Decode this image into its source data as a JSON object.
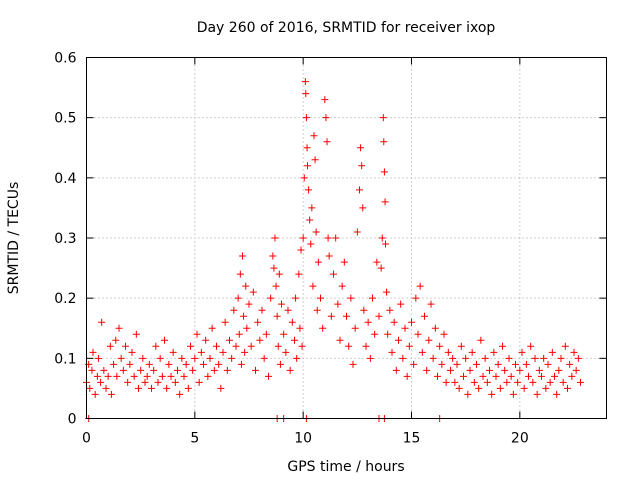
{
  "chart_data": {
    "type": "scatter",
    "title": "Day 260 of 2016, SRMTID for receiver ixop",
    "xlabel": "GPS time / hours",
    "ylabel": "SRMTID / TECUs",
    "xlim": [
      0,
      24
    ],
    "ylim": [
      0,
      0.6
    ],
    "xticks": [
      0,
      5,
      10,
      15,
      20
    ],
    "yticks": [
      0,
      0.1,
      0.2,
      0.3,
      0.4,
      0.5,
      0.6
    ],
    "ytick_labels": [
      "0",
      "0.1",
      "0.2",
      "0.3",
      "0.4",
      "0.5",
      "0.6"
    ],
    "grid": true,
    "marker": "+",
    "marker_color": "#ff0000",
    "series": [
      {
        "name": "SRMTID",
        "points": [
          [
            0.0,
            0.06
          ],
          [
            0.1,
            0.09
          ],
          [
            0.15,
            0.05
          ],
          [
            0.25,
            0.08
          ],
          [
            0.3,
            0.11
          ],
          [
            0.4,
            0.04
          ],
          [
            0.5,
            0.07
          ],
          [
            0.55,
            0.1
          ],
          [
            0.65,
            0.06
          ],
          [
            0.7,
            0.16
          ],
          [
            0.8,
            0.08
          ],
          [
            0.9,
            0.05
          ],
          [
            1.0,
            0.07
          ],
          [
            1.1,
            0.12
          ],
          [
            1.15,
            0.04
          ],
          [
            1.25,
            0.09
          ],
          [
            1.35,
            0.13
          ],
          [
            1.4,
            0.07
          ],
          [
            1.5,
            0.15
          ],
          [
            1.6,
            0.1
          ],
          [
            1.7,
            0.08
          ],
          [
            1.8,
            0.12
          ],
          [
            1.9,
            0.06
          ],
          [
            2.0,
            0.09
          ],
          [
            2.1,
            0.11
          ],
          [
            2.2,
            0.07
          ],
          [
            2.3,
            0.14
          ],
          [
            2.4,
            0.05
          ],
          [
            2.5,
            0.08
          ],
          [
            2.6,
            0.1
          ],
          [
            2.7,
            0.06
          ],
          [
            2.8,
            0.07
          ],
          [
            2.9,
            0.09
          ],
          [
            3.0,
            0.05
          ],
          [
            3.1,
            0.08
          ],
          [
            3.2,
            0.12
          ],
          [
            3.3,
            0.06
          ],
          [
            3.4,
            0.1
          ],
          [
            3.5,
            0.07
          ],
          [
            3.6,
            0.13
          ],
          [
            3.7,
            0.05
          ],
          [
            3.8,
            0.09
          ],
          [
            3.9,
            0.07
          ],
          [
            4.0,
            0.11
          ],
          [
            4.1,
            0.06
          ],
          [
            4.2,
            0.08
          ],
          [
            4.3,
            0.04
          ],
          [
            4.4,
            0.1
          ],
          [
            4.5,
            0.07
          ],
          [
            4.6,
            0.09
          ],
          [
            4.7,
            0.05
          ],
          [
            4.8,
            0.12
          ],
          [
            4.9,
            0.08
          ],
          [
            5.0,
            0.1
          ],
          [
            5.1,
            0.14
          ],
          [
            5.2,
            0.06
          ],
          [
            5.3,
            0.11
          ],
          [
            5.4,
            0.09
          ],
          [
            5.5,
            0.13
          ],
          [
            5.6,
            0.07
          ],
          [
            5.7,
            0.1
          ],
          [
            5.8,
            0.15
          ],
          [
            5.9,
            0.08
          ],
          [
            6.0,
            0.12
          ],
          [
            6.1,
            0.09
          ],
          [
            6.2,
            0.05
          ],
          [
            6.3,
            0.11
          ],
          [
            6.4,
            0.16
          ],
          [
            6.5,
            0.08
          ],
          [
            6.6,
            0.13
          ],
          [
            6.7,
            0.1
          ],
          [
            6.8,
            0.18
          ],
          [
            6.9,
            0.12
          ],
          [
            7.0,
            0.2
          ],
          [
            7.05,
            0.14
          ],
          [
            7.1,
            0.24
          ],
          [
            7.15,
            0.09
          ],
          [
            7.2,
            0.27
          ],
          [
            7.25,
            0.17
          ],
          [
            7.3,
            0.11
          ],
          [
            7.35,
            0.22
          ],
          [
            7.4,
            0.15
          ],
          [
            7.5,
            0.19
          ],
          [
            7.6,
            0.12
          ],
          [
            7.7,
            0.21
          ],
          [
            7.8,
            0.08
          ],
          [
            7.9,
            0.16
          ],
          [
            8.0,
            0.13
          ],
          [
            8.1,
            0.18
          ],
          [
            8.2,
            0.1
          ],
          [
            8.3,
            0.14
          ],
          [
            8.4,
            0.07
          ],
          [
            8.5,
            0.2
          ],
          [
            8.6,
            0.27
          ],
          [
            8.65,
            0.25
          ],
          [
            8.7,
            0.3
          ],
          [
            8.75,
            0.22
          ],
          [
            8.8,
            0.17
          ],
          [
            8.85,
            0.12
          ],
          [
            8.9,
            0.24
          ],
          [
            8.95,
            0.09
          ],
          [
            9.0,
            0.19
          ],
          [
            9.1,
            0.14
          ],
          [
            9.2,
            0.11
          ],
          [
            9.3,
            0.18
          ],
          [
            9.4,
            0.08
          ],
          [
            9.5,
            0.16
          ],
          [
            9.6,
            0.13
          ],
          [
            9.65,
            0.2
          ],
          [
            9.7,
            0.1
          ],
          [
            9.8,
            0.24
          ],
          [
            9.85,
            0.15
          ],
          [
            9.9,
            0.28
          ],
          [
            9.95,
            0.12
          ],
          [
            10.0,
            0.3
          ],
          [
            10.05,
            0.4
          ],
          [
            10.1,
            0.56
          ],
          [
            10.12,
            0.54
          ],
          [
            10.15,
            0.5
          ],
          [
            10.18,
            0.45
          ],
          [
            10.2,
            0.42
          ],
          [
            10.25,
            0.38
          ],
          [
            10.3,
            0.33
          ],
          [
            10.35,
            0.29
          ],
          [
            10.4,
            0.35
          ],
          [
            10.45,
            0.22
          ],
          [
            10.5,
            0.47
          ],
          [
            10.55,
            0.43
          ],
          [
            10.6,
            0.31
          ],
          [
            10.65,
            0.18
          ],
          [
            10.7,
            0.26
          ],
          [
            10.8,
            0.2
          ],
          [
            10.9,
            0.15
          ],
          [
            11.0,
            0.53
          ],
          [
            11.05,
            0.5
          ],
          [
            11.1,
            0.46
          ],
          [
            11.15,
            0.3
          ],
          [
            11.2,
            0.27
          ],
          [
            11.3,
            0.17
          ],
          [
            11.4,
            0.24
          ],
          [
            11.5,
            0.3
          ],
          [
            11.6,
            0.19
          ],
          [
            11.7,
            0.13
          ],
          [
            11.8,
            0.22
          ],
          [
            11.9,
            0.26
          ],
          [
            12.0,
            0.17
          ],
          [
            12.1,
            0.12
          ],
          [
            12.2,
            0.2
          ],
          [
            12.3,
            0.09
          ],
          [
            12.4,
            0.15
          ],
          [
            12.5,
            0.31
          ],
          [
            12.6,
            0.38
          ],
          [
            12.65,
            0.45
          ],
          [
            12.7,
            0.42
          ],
          [
            12.75,
            0.35
          ],
          [
            12.8,
            0.18
          ],
          [
            12.9,
            0.12
          ],
          [
            13.0,
            0.16
          ],
          [
            13.1,
            0.1
          ],
          [
            13.2,
            0.2
          ],
          [
            13.3,
            0.14
          ],
          [
            13.4,
            0.26
          ],
          [
            13.5,
            0.17
          ],
          [
            13.6,
            0.25
          ],
          [
            13.65,
            0.3
          ],
          [
            13.7,
            0.5
          ],
          [
            13.72,
            0.46
          ],
          [
            13.75,
            0.41
          ],
          [
            13.78,
            0.36
          ],
          [
            13.8,
            0.29
          ],
          [
            13.85,
            0.21
          ],
          [
            13.9,
            0.14
          ],
          [
            14.0,
            0.18
          ],
          [
            14.1,
            0.11
          ],
          [
            14.2,
            0.16
          ],
          [
            14.3,
            0.08
          ],
          [
            14.4,
            0.13
          ],
          [
            14.5,
            0.19
          ],
          [
            14.6,
            0.1
          ],
          [
            14.7,
            0.15
          ],
          [
            14.8,
            0.07
          ],
          [
            14.9,
            0.12
          ],
          [
            15.0,
            0.16
          ],
          [
            15.1,
            0.09
          ],
          [
            15.2,
            0.2
          ],
          [
            15.3,
            0.14
          ],
          [
            15.4,
            0.22
          ],
          [
            15.5,
            0.11
          ],
          [
            15.6,
            0.17
          ],
          [
            15.7,
            0.08
          ],
          [
            15.8,
            0.13
          ],
          [
            15.9,
            0.19
          ],
          [
            16.0,
            0.1
          ],
          [
            16.1,
            0.15
          ],
          [
            16.2,
            0.07
          ],
          [
            16.3,
            0.12
          ],
          [
            16.4,
            0.09
          ],
          [
            16.5,
            0.14
          ],
          [
            16.6,
            0.06
          ],
          [
            16.7,
            0.11
          ],
          [
            16.8,
            0.08
          ],
          [
            16.9,
            0.1
          ],
          [
            17.0,
            0.06
          ],
          [
            17.1,
            0.09
          ],
          [
            17.2,
            0.05
          ],
          [
            17.3,
            0.12
          ],
          [
            17.4,
            0.07
          ],
          [
            17.5,
            0.1
          ],
          [
            17.6,
            0.04
          ],
          [
            17.7,
            0.08
          ],
          [
            17.8,
            0.11
          ],
          [
            17.9,
            0.06
          ],
          [
            18.0,
            0.09
          ],
          [
            18.1,
            0.05
          ],
          [
            18.2,
            0.13
          ],
          [
            18.3,
            0.07
          ],
          [
            18.4,
            0.1
          ],
          [
            18.5,
            0.06
          ],
          [
            18.6,
            0.08
          ],
          [
            18.7,
            0.04
          ],
          [
            18.8,
            0.11
          ],
          [
            18.9,
            0.07
          ],
          [
            19.0,
            0.09
          ],
          [
            19.1,
            0.05
          ],
          [
            19.2,
            0.12
          ],
          [
            19.3,
            0.08
          ],
          [
            19.4,
            0.06
          ],
          [
            19.5,
            0.1
          ],
          [
            19.6,
            0.07
          ],
          [
            19.7,
            0.04
          ],
          [
            19.8,
            0.09
          ],
          [
            19.9,
            0.06
          ],
          [
            20.0,
            0.08
          ],
          [
            20.1,
            0.11
          ],
          [
            20.2,
            0.05
          ],
          [
            20.3,
            0.09
          ],
          [
            20.4,
            0.07
          ],
          [
            20.5,
            0.12
          ],
          [
            20.6,
            0.06
          ],
          [
            20.7,
            0.1
          ],
          [
            20.8,
            0.04
          ],
          [
            20.9,
            0.08
          ],
          [
            21.0,
            0.07
          ],
          [
            21.1,
            0.1
          ],
          [
            21.2,
            0.05
          ],
          [
            21.3,
            0.09
          ],
          [
            21.4,
            0.06
          ],
          [
            21.5,
            0.11
          ],
          [
            21.6,
            0.07
          ],
          [
            21.7,
            0.04
          ],
          [
            21.8,
            0.08
          ],
          [
            21.9,
            0.1
          ],
          [
            22.0,
            0.06
          ],
          [
            22.1,
            0.12
          ],
          [
            22.2,
            0.05
          ],
          [
            22.3,
            0.09
          ],
          [
            22.4,
            0.07
          ],
          [
            22.5,
            0.11
          ],
          [
            22.6,
            0.08
          ],
          [
            22.7,
            0.1
          ],
          [
            22.8,
            0.06
          ]
        ]
      }
    ],
    "zero_markers_x": [
      0.1,
      8.8,
      9.1,
      10.15,
      13.5,
      13.75,
      16.3
    ]
  }
}
